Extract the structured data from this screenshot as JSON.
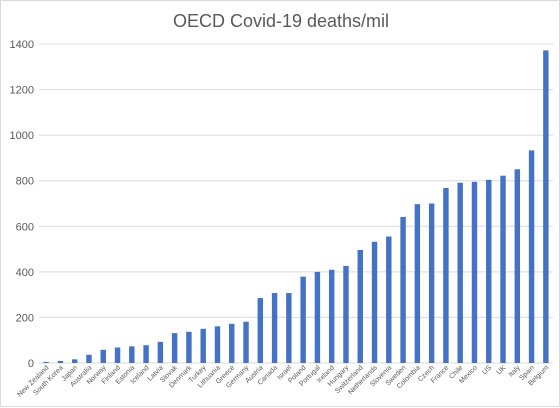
{
  "chart_data": {
    "type": "bar",
    "title": "OECD Covid-19 deaths/mil",
    "xlabel": "",
    "ylabel": "",
    "ylim": [
      0,
      1400
    ],
    "yticks": [
      0,
      200,
      400,
      600,
      800,
      1000,
      1200,
      1400
    ],
    "grid": true,
    "legend": "none",
    "bar_color": "#4472c4",
    "categories": [
      "New Zealand",
      "South Korea",
      "Japan",
      "Australia",
      "Norway",
      "Finland",
      "Estonia",
      "Iceland",
      "Latvia",
      "Slovak",
      "Denmark",
      "Turkey",
      "Lithuania",
      "Greece",
      "Germany",
      "Austria",
      "Canada",
      "Israel",
      "Poland",
      "Portugal",
      "Ireland",
      "Hungary",
      "Switzerland",
      "Netherlands",
      "Slovenia",
      "Sweden",
      "Colombia",
      "Czech",
      "France",
      "Chile",
      "Mexico",
      "US",
      "UK",
      "Italy",
      "Spain",
      "Belgium"
    ],
    "values": [
      5,
      9,
      16,
      36,
      58,
      68,
      73,
      78,
      93,
      131,
      137,
      150,
      161,
      172,
      181,
      285,
      307,
      307,
      379,
      400,
      409,
      426,
      496,
      532,
      555,
      641,
      697,
      700,
      768,
      791,
      795,
      804,
      822,
      850,
      933,
      1372
    ]
  }
}
